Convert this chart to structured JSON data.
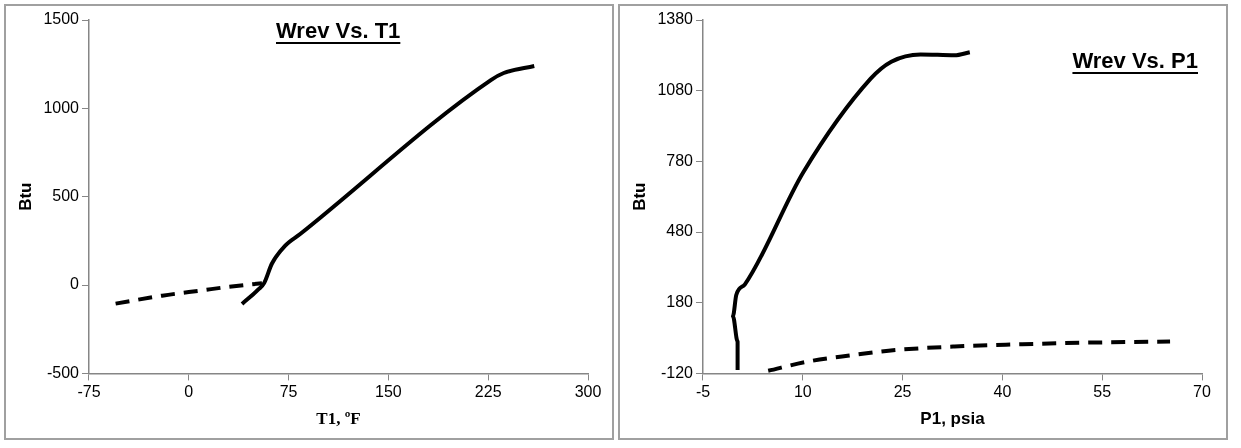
{
  "chart_data": [
    {
      "type": "line",
      "title": "Wrev Vs. T1",
      "xlabel": "T1, ºF",
      "ylabel": "Btu",
      "xlim": [
        -75,
        300
      ],
      "xticks": [
        -75,
        0,
        75,
        150,
        225,
        300
      ],
      "ylim": [
        -500,
        1500
      ],
      "yticks": [
        -500,
        0,
        500,
        1000,
        1500
      ],
      "grid": false,
      "legend": false,
      "marker": "none",
      "series": [
        {
          "color": "#000000",
          "line_style": "solid",
          "x": [
            40,
            52.7,
            56.6,
            62.5,
            72.3,
            83.7,
            227,
            236.7,
            259.6
          ],
          "values": [
            -107,
            -22,
            11,
            122,
            222,
            289,
            1160,
            1200,
            1240
          ]
        },
        {
          "color": "#000000",
          "line_style": "dashed",
          "x": [
            -55,
            -20,
            10,
            30,
            55
          ],
          "values": [
            -105,
            -60,
            -30,
            -10,
            10
          ]
        }
      ]
    },
    {
      "type": "line",
      "title": "Wrev Vs. P1",
      "xlabel": "P1, psia",
      "ylabel": "Btu",
      "xlim": [
        -5,
        70
      ],
      "xticks": [
        -5,
        10,
        25,
        40,
        55,
        70
      ],
      "ylim": [
        -120,
        1380
      ],
      "yticks": [
        -120,
        180,
        480,
        780,
        1080,
        1380
      ],
      "grid": false,
      "legend": false,
      "marker": "none",
      "series": [
        {
          "color": "#000000",
          "line_style": "solid",
          "x": [
            0.2,
            0.2,
            -0.5,
            0,
            1.3,
            10.1,
            20.2,
            23.3,
            27.7,
            32.8,
            35.1
          ],
          "values": [
            -106,
            15,
            123,
            213,
            258,
            735,
            1131,
            1203,
            1234,
            1230,
            1243
          ]
        },
        {
          "color": "#000000",
          "line_style": "dashed",
          "x": [
            4.8,
            10.7,
            17,
            23.9,
            32.8,
            42.2,
            51.6,
            65.2
          ],
          "values": [
            -109,
            -70,
            -44,
            -21,
            -6,
            3,
            10,
            15
          ]
        }
      ]
    }
  ]
}
